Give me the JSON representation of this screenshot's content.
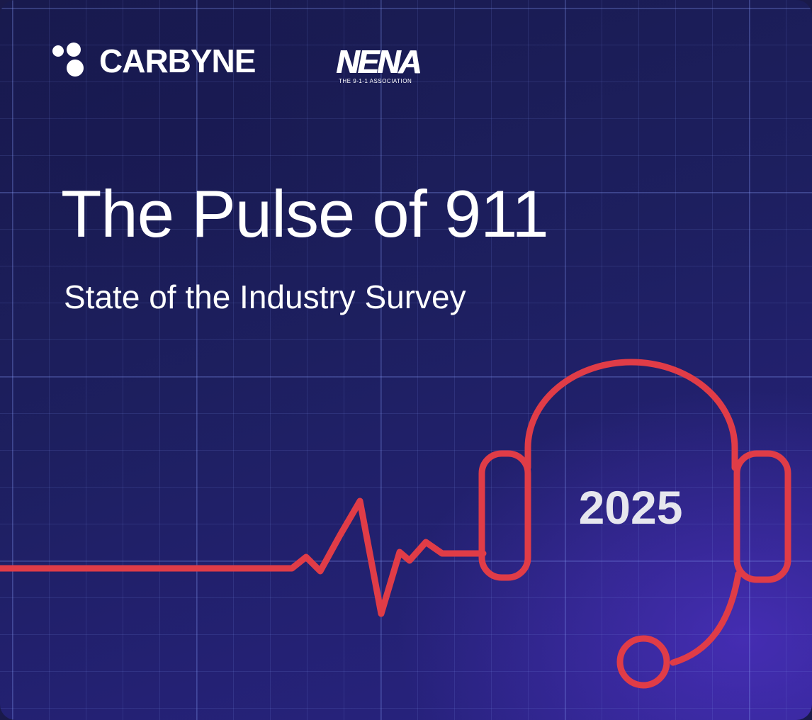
{
  "partners": {
    "carbyne": {
      "name": "CARBYNE",
      "icon": "carbyne-dots-logo-icon"
    },
    "nena": {
      "mark": "NENA",
      "tagline": "THE 9-1-1 ASSOCIATION"
    }
  },
  "headline": {
    "title": "The Pulse of 911",
    "subtitle": "State of the Industry Survey"
  },
  "graphic": {
    "year": "2025",
    "icons": [
      "heartbeat-line-icon",
      "headset-icon"
    ],
    "colors": {
      "accent": "#e03c47",
      "background": "#1d1f5f",
      "text": "#ffffff"
    }
  }
}
